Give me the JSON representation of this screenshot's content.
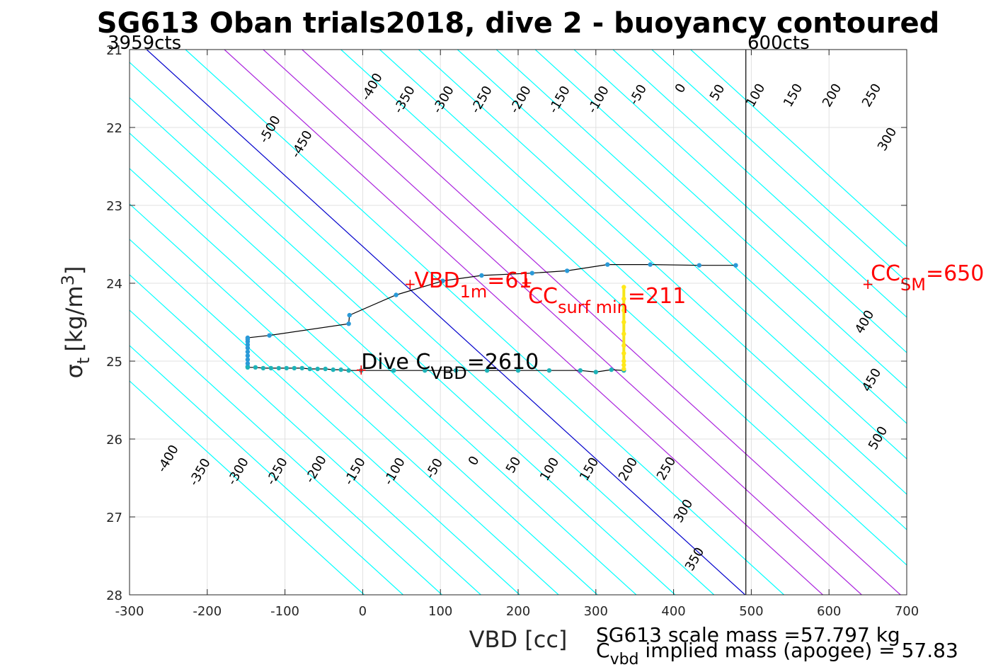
{
  "chart_data": {
    "type": "line",
    "title": "SG613 Oban trials2018, dive 2 - buoyancy contoured",
    "xlabel": "VBD [cc]",
    "ylabel_symbol": "σ",
    "ylabel_sub": "t",
    "ylabel_units": "[kg/m",
    "ylabel_sup": "3",
    "ylabel_close": "]",
    "xlim": [
      -300,
      700
    ],
    "ylim": [
      21,
      28
    ],
    "y_reversed": true,
    "grid": true,
    "xticks": [
      "-300",
      "-200",
      "-100",
      "0",
      "100",
      "200",
      "300",
      "400",
      "500",
      "600",
      "700"
    ],
    "yticks": [
      "21",
      "22",
      "23",
      "24",
      "25",
      "26",
      "27",
      "28"
    ],
    "counts_left": "3959cts",
    "counts_right": "600cts",
    "vlines": [
      {
        "name": "600cts",
        "x": 493,
        "color": "#000000"
      }
    ],
    "buoyancy_contours": {
      "color_default": "#00ffff",
      "color_zero": "#0000cc",
      "color_purple": "#aa22dd",
      "slope_cc_per_sigma": 110,
      "lines": [
        {
          "level": -500,
          "x_at_sigma25": -328
        },
        {
          "level": -450,
          "x_at_sigma25": -278
        },
        {
          "level": -400,
          "x_at_sigma25": -228
        },
        {
          "level": -350,
          "x_at_sigma25": -178
        },
        {
          "level": -300,
          "x_at_sigma25": -128
        },
        {
          "level": -250,
          "x_at_sigma25": -78
        },
        {
          "level": -200,
          "x_at_sigma25": -28
        },
        {
          "level": -150,
          "x_at_sigma25": 22
        },
        {
          "level": -100,
          "x_at_sigma25": 72
        },
        {
          "level": -50,
          "x_at_sigma25": 122
        },
        {
          "level": 0,
          "x_at_sigma25": 162
        },
        {
          "level": 50,
          "x_at_sigma25": 212
        },
        {
          "level": 100,
          "x_at_sigma25": 262
        },
        {
          "level": 150,
          "x_at_sigma25": 312
        },
        {
          "level": 200,
          "x_at_sigma25": 362
        },
        {
          "level": 250,
          "x_at_sigma25": 412
        },
        {
          "level": 300,
          "x_at_sigma25": 462
        },
        {
          "level": 350,
          "x_at_sigma25": 512
        },
        {
          "level": 400,
          "x_at_sigma25": 562
        },
        {
          "level": 450,
          "x_at_sigma25": 612
        },
        {
          "level": 500,
          "x_at_sigma25": 662
        },
        {
          "level": 550,
          "x_at_sigma25": 712
        },
        {
          "level": 600,
          "x_at_sigma25": 762
        },
        {
          "level": 650,
          "x_at_sigma25": 812
        },
        {
          "level": 700,
          "x_at_sigma25": 862
        }
      ],
      "labels_upper": [
        "-500",
        "-450",
        "-400",
        "-350",
        "-300",
        "-250",
        "-200",
        "-150",
        "-100",
        "-50",
        "0",
        "50",
        "100",
        "150",
        "200",
        "250",
        "300"
      ],
      "labels_lower": [
        "-400",
        "-350",
        "-300",
        "-250",
        "-200",
        "-150",
        "-100",
        "-50",
        "0",
        "50",
        "100",
        "150",
        "200",
        "250",
        "300",
        "350"
      ],
      "labels_right": [
        "400",
        "450",
        "500"
      ]
    },
    "series": [
      {
        "role": "climb",
        "color": "#000000",
        "marker_color": "#2a9ad8",
        "x": [
          -148,
          -148,
          -148,
          -148,
          -148,
          -148,
          -148,
          -148,
          -148,
          -148,
          -120,
          -18,
          -17,
          43,
          103,
          153,
          218,
          263,
          315,
          370,
          433,
          480
        ],
        "y": [
          25.07,
          25.03,
          24.98,
          24.93,
          24.88,
          24.83,
          24.79,
          24.75,
          24.72,
          24.7,
          24.67,
          24.52,
          24.41,
          24.15,
          23.97,
          23.9,
          23.87,
          23.84,
          23.76,
          23.76,
          23.77,
          23.77
        ]
      },
      {
        "role": "dive",
        "color": "#000000",
        "marker_color": "#1db3b8",
        "x": [
          -148,
          -138,
          -128,
          -118,
          -108,
          -98,
          -88,
          -78,
          -68,
          -58,
          -48,
          -38,
          -28,
          -18,
          -2,
          40,
          80,
          120,
          160,
          200,
          240,
          280,
          300,
          320,
          336
        ],
        "y": [
          25.08,
          25.08,
          25.09,
          25.09,
          25.09,
          25.09,
          25.09,
          25.09,
          25.1,
          25.1,
          25.1,
          25.11,
          25.11,
          25.12,
          25.12,
          25.12,
          25.12,
          25.12,
          25.12,
          25.12,
          25.12,
          25.12,
          25.14,
          25.11,
          25.12
        ]
      },
      {
        "role": "surface",
        "color": "#f5e51a",
        "marker_color": "#ffe81a",
        "x": [
          336,
          336,
          336,
          336,
          336,
          336,
          336,
          336,
          336,
          336
        ],
        "y": [
          24.05,
          24.2,
          24.35,
          24.5,
          24.65,
          24.8,
          24.9,
          25.0,
          25.05,
          25.1
        ]
      }
    ],
    "annotations": [
      {
        "name": "vbd-1m",
        "text": "VBD",
        "sub": "1m",
        "suffix": "=61",
        "x": 61,
        "y": 24.02
      },
      {
        "name": "cc-surf-min",
        "text": "CC",
        "sub": "surf min",
        "suffix": "=211",
        "x": 211,
        "y": 24.0
      },
      {
        "name": "cc-sm",
        "text": "CC",
        "sub": "SM",
        "suffix": "=650",
        "x": 650,
        "y": 24.02
      },
      {
        "name": "dive-c-vbd",
        "text": "Dive C",
        "sub": "VBD",
        "suffix": "=2610",
        "x": -2,
        "y": 25.12
      }
    ],
    "notes": {
      "scale_mass": "SG613 scale mass =57.797 kg",
      "implied_prefix": "C",
      "implied_sub": "vbd",
      "implied_suffix": " implied mass (apogee) = 57.83"
    }
  }
}
